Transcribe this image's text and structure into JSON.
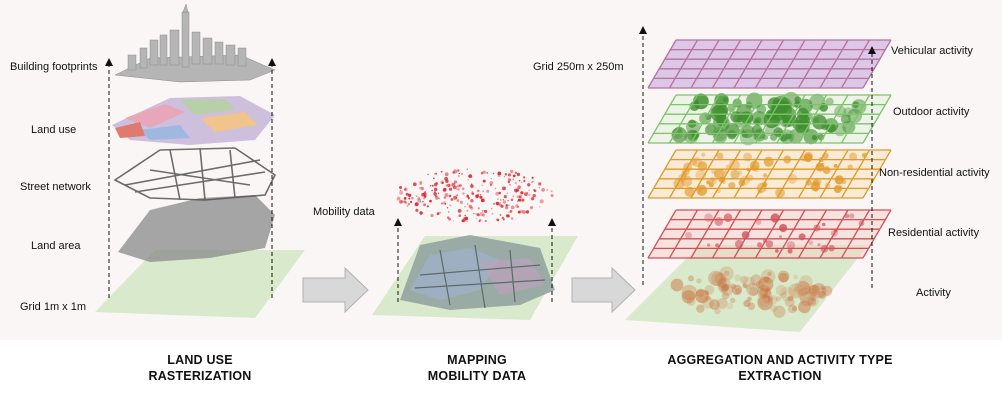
{
  "left_labels": {
    "buildings": "Building footprints",
    "land_use": "Land use",
    "streets": "Street network",
    "land_area": "Land area",
    "grid_fine": "Grid 1m x 1m"
  },
  "middle_labels": {
    "mobility": "Mobility data"
  },
  "right_labels": {
    "grid_coarse": "Grid 250m x 250m",
    "vehicular": "Vehicular activity",
    "outdoor": "Outdoor activity",
    "non_residential": "Non-residential activity",
    "residential": "Residential activity",
    "activity": "Activity"
  },
  "titles": {
    "land_use_line1": "LAND USE",
    "land_use_line2": "RASTERIZATION",
    "mapping_line1": "MAPPING",
    "mapping_line2": "MOBILITY DATA",
    "aggregation_line1": "AGGREGATION AND ACTIVITY TYPE",
    "aggregation_line2": "EXTRACTION"
  },
  "colors": {
    "base_green": "#cfe6c0",
    "vehicular": "#b5739a",
    "outdoor": "#3f8f2f",
    "non_residential": "#e09a2a",
    "residential": "#d0505a",
    "activity": "#c9703e",
    "mobility": "#d9232b"
  }
}
